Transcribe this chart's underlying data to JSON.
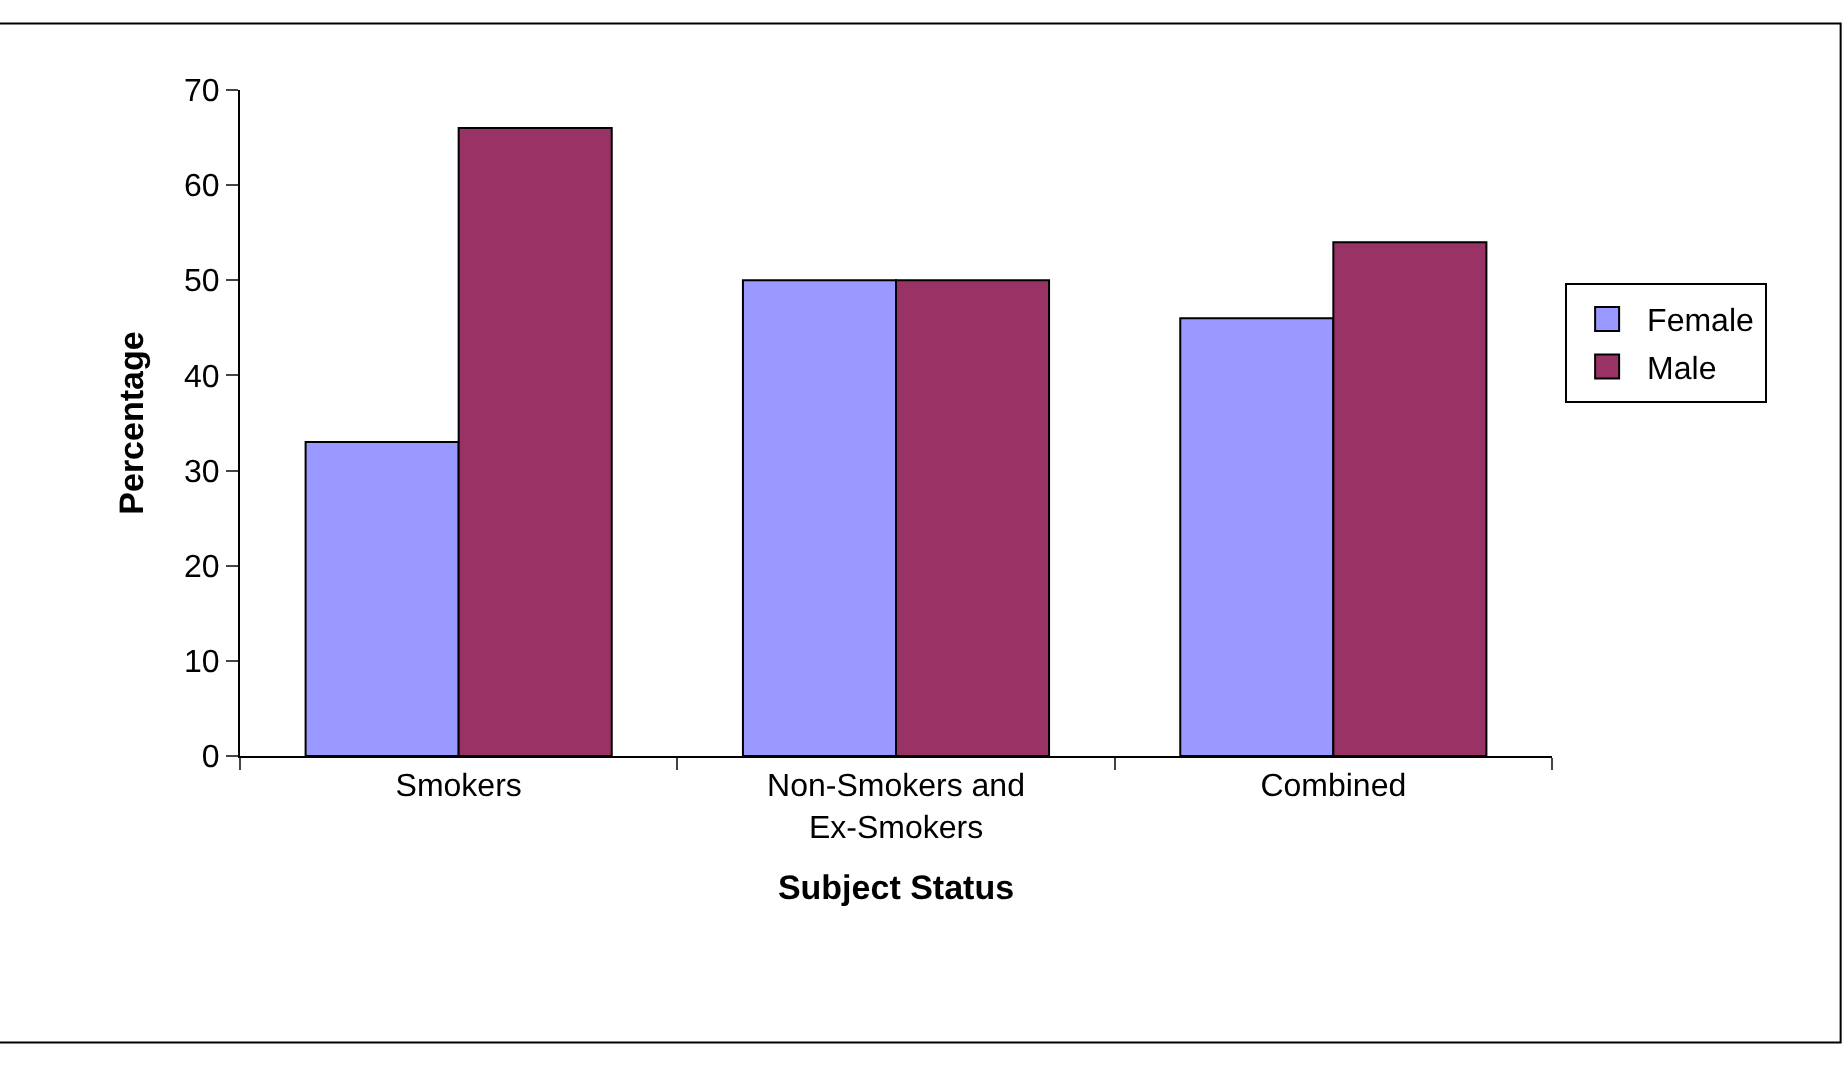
{
  "chart_data": {
    "type": "bar",
    "xlabel": "Subject Status",
    "ylabel": "Percentage",
    "categories": [
      "Smokers",
      "Non-Smokers and Ex-Smokers",
      "Combined"
    ],
    "series": [
      {
        "name": "Female",
        "color": "#9999ff",
        "values": [
          33,
          50,
          46
        ]
      },
      {
        "name": "Male",
        "color": "#993366",
        "values": [
          66,
          50,
          54
        ]
      }
    ],
    "ylim": [
      0,
      70
    ],
    "yticks": [
      0,
      10,
      20,
      30,
      40,
      50,
      60,
      70
    ],
    "legend": "right"
  }
}
